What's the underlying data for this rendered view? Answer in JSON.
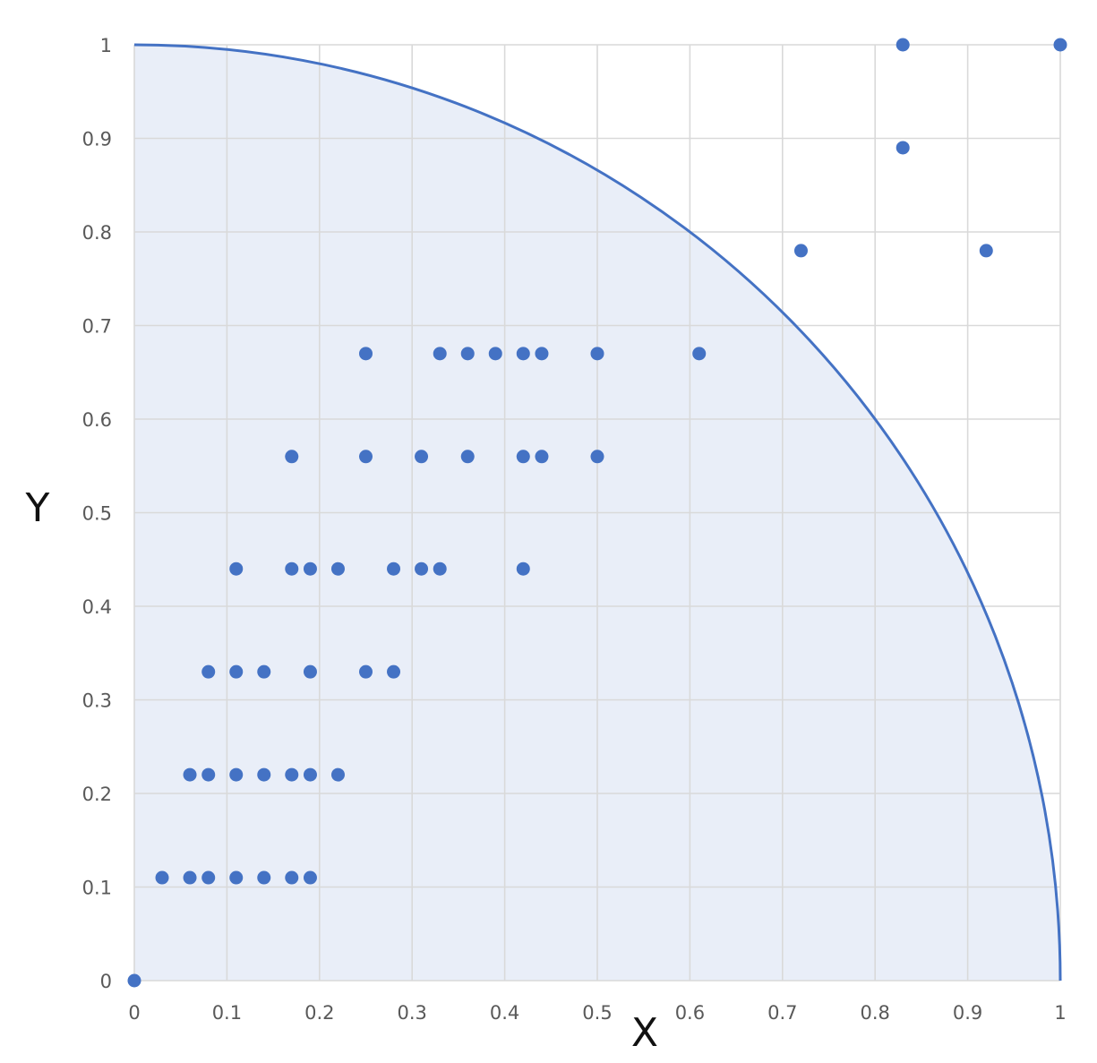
{
  "chart_data": {
    "type": "scatter",
    "title": "",
    "xlabel": "X",
    "ylabel": "Y",
    "xlim": [
      0,
      1
    ],
    "ylim": [
      0,
      1
    ],
    "x_ticks": [
      "0",
      "0.1",
      "0.2",
      "0.3",
      "0.4",
      "0.5",
      "0.6",
      "0.7",
      "0.8",
      "0.9",
      "1"
    ],
    "y_ticks": [
      "0",
      "0.1",
      "0.2",
      "0.3",
      "0.4",
      "0.5",
      "0.6",
      "0.7",
      "0.8",
      "0.9",
      "1"
    ],
    "grid": true,
    "legend": "none",
    "colors": {
      "points": "#4472c4",
      "curve": "#4472c4",
      "fill": "#e9eef8",
      "grid": "#d9d9d9"
    },
    "shapes": [
      {
        "type": "quarter-circle",
        "center": [
          0,
          0
        ],
        "radius": 1,
        "filled": true
      }
    ],
    "series": [
      {
        "points": [
          [
            0,
            0
          ],
          [
            0.03,
            0.11
          ],
          [
            0.06,
            0.11
          ],
          [
            0.08,
            0.11
          ],
          [
            0.11,
            0.11
          ],
          [
            0.14,
            0.11
          ],
          [
            0.17,
            0.11
          ],
          [
            0.19,
            0.11
          ],
          [
            0.06,
            0.22
          ],
          [
            0.08,
            0.22
          ],
          [
            0.11,
            0.22
          ],
          [
            0.14,
            0.22
          ],
          [
            0.17,
            0.22
          ],
          [
            0.19,
            0.22
          ],
          [
            0.22,
            0.22
          ],
          [
            0.08,
            0.33
          ],
          [
            0.11,
            0.33
          ],
          [
            0.14,
            0.33
          ],
          [
            0.19,
            0.33
          ],
          [
            0.25,
            0.33
          ],
          [
            0.28,
            0.33
          ],
          [
            0.11,
            0.44
          ],
          [
            0.17,
            0.44
          ],
          [
            0.19,
            0.44
          ],
          [
            0.22,
            0.44
          ],
          [
            0.28,
            0.44
          ],
          [
            0.31,
            0.44
          ],
          [
            0.33,
            0.44
          ],
          [
            0.42,
            0.44
          ],
          [
            0.17,
            0.56
          ],
          [
            0.25,
            0.56
          ],
          [
            0.31,
            0.56
          ],
          [
            0.36,
            0.56
          ],
          [
            0.42,
            0.56
          ],
          [
            0.44,
            0.56
          ],
          [
            0.5,
            0.56
          ],
          [
            0.25,
            0.67
          ],
          [
            0.33,
            0.67
          ],
          [
            0.36,
            0.67
          ],
          [
            0.39,
            0.67
          ],
          [
            0.42,
            0.67
          ],
          [
            0.44,
            0.67
          ],
          [
            0.5,
            0.67
          ],
          [
            0.61,
            0.67
          ],
          [
            0.72,
            0.78
          ],
          [
            0.92,
            0.78
          ],
          [
            0.83,
            0.89
          ],
          [
            0.83,
            1
          ],
          [
            1,
            1
          ]
        ]
      }
    ]
  }
}
